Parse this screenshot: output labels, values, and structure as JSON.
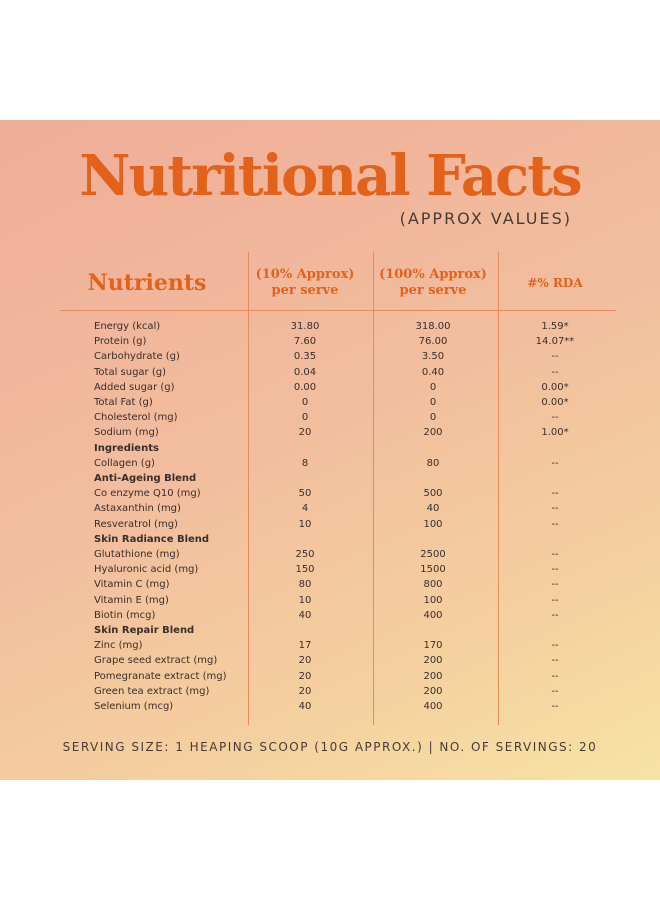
{
  "header": {
    "title": "Nutritional Facts",
    "subtitle": "(APPROX VALUES)"
  },
  "table": {
    "columns": [
      {
        "lines": [
          "Nutrients"
        ]
      },
      {
        "lines": [
          "(10% Approx)",
          "per serve"
        ]
      },
      {
        "lines": [
          "(100% Approx)",
          "per serve"
        ]
      },
      {
        "lines": [
          "#% RDA"
        ]
      }
    ],
    "rows": [
      [
        "Energy (kcal)",
        "31.80",
        "318.00",
        "1.59*"
      ],
      [
        "Protein (g)",
        "7.60",
        "76.00",
        "14.07**"
      ],
      [
        "Carbohydrate (g)",
        "0.35",
        "3.50",
        "--"
      ],
      [
        "Total sugar (g)",
        "0.04",
        "0.40",
        "--"
      ],
      [
        "Added sugar (g)",
        "0.00",
        "0",
        "0.00*"
      ],
      [
        "Total Fat (g)",
        "0",
        "0",
        "0.00*"
      ],
      [
        "Cholesterol (mg)",
        "0",
        "0",
        "--"
      ],
      [
        "Sodium (mg)",
        "20",
        "200",
        "1.00*"
      ],
      [
        "Ingredients"
      ],
      [
        "Collagen (g)",
        "8",
        "80",
        "--"
      ],
      [
        "Anti-Ageing Blend"
      ],
      [
        "Co enzyme Q10 (mg)",
        "50",
        "500",
        "--"
      ],
      [
        "Astaxanthin (mg)",
        "4",
        "40",
        "--"
      ],
      [
        "Resveratrol (mg)",
        "10",
        "100",
        "--"
      ],
      [
        "Skin Radiance Blend"
      ],
      [
        "Glutathione (mg)",
        "250",
        "2500",
        "--"
      ],
      [
        "Hyaluronic acid (mg)",
        "150",
        "1500",
        "--"
      ],
      [
        "Vitamin C (mg)",
        "80",
        "800",
        "--"
      ],
      [
        "Vitamin E (mg)",
        "10",
        "100",
        "--"
      ],
      [
        "Biotin (mcg)",
        "40",
        "400",
        "--"
      ],
      [
        "Skin Repair Blend"
      ],
      [
        "Zinc (mg)",
        "17",
        "170",
        "--"
      ],
      [
        "Grape seed extract (mg)",
        "20",
        "200",
        "--"
      ],
      [
        "Pomegranate extract (mg)",
        "20",
        "200",
        "--"
      ],
      [
        "Green tea extract (mg)",
        "20",
        "200",
        "--"
      ],
      [
        "Selenium (mcg)",
        "40",
        "400",
        "--"
      ]
    ]
  },
  "footer": "SERVING SIZE: 1 HEAPING SCOOP (10G APPROX.) | NO. OF SERVINGS: 20"
}
